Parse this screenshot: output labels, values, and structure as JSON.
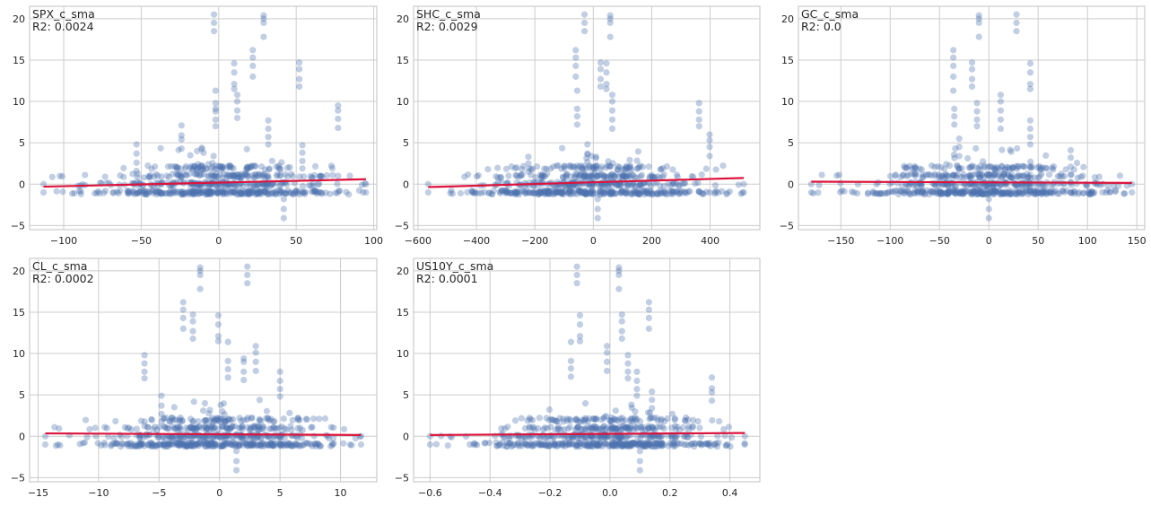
{
  "figure": {
    "style": "seaborn whitegrid",
    "point_color": "#4c72b0",
    "point_alpha": 0.35,
    "line_color": "#dc143c",
    "grid_color": "#cccccc",
    "text_color": "#262626"
  },
  "chart_data": [
    {
      "type": "scatter",
      "title": "",
      "annotation": [
        "SPX_c_sma",
        "R2: 0.0024"
      ],
      "xlabel": "",
      "ylabel": "",
      "xlim": [
        -122,
        102
      ],
      "ylim": [
        -5.5,
        21.5
      ],
      "xticks": [
        -100,
        -50,
        0,
        50,
        100
      ],
      "xtick_labels": [
        "−100",
        "−50",
        "0",
        "50",
        "100"
      ],
      "yticks": [
        -5,
        0,
        5,
        10,
        15,
        20
      ],
      "ytick_labels": [
        "−5",
        "0",
        "5",
        "10",
        "15",
        "20"
      ],
      "grid": true,
      "regression_line": {
        "x": [
          -113,
          95
        ],
        "y": [
          -0.3,
          0.6
        ]
      },
      "x_range": [
        -113,
        95
      ],
      "outliers": [
        {
          "x": -3,
          "y": [
            18.5,
            19.5,
            20.5
          ]
        },
        {
          "x": 29,
          "y": [
            17.8,
            19.5,
            20,
            20.4
          ]
        },
        {
          "x": 22,
          "y": [
            13,
            14.3,
            15.3,
            16.2
          ]
        },
        {
          "x": 10,
          "y": [
            11.5,
            12.1,
            13.5,
            14.6
          ]
        },
        {
          "x": 52,
          "y": [
            11.8,
            12.7,
            13.9,
            14.7
          ]
        },
        {
          "x": -2,
          "y": [
            7,
            7.8,
            8.8,
            9.1,
            9.8,
            11.3
          ]
        },
        {
          "x": 12,
          "y": [
            8,
            8.9,
            10,
            10.8
          ]
        },
        {
          "x": 77,
          "y": [
            6.8,
            7.9,
            8.9,
            9.5
          ]
        },
        {
          "x": 32,
          "y": [
            4.8,
            5.7,
            6.7,
            7.7
          ]
        },
        {
          "x": -24,
          "y": [
            4.3,
            5.4,
            5.9,
            7.1
          ]
        },
        {
          "x": -53,
          "y": [
            1.6,
            2.6,
            3.7,
            4.8
          ]
        },
        {
          "x": 54,
          "y": [
            1.9,
            2.8,
            3.8,
            4.7
          ]
        },
        {
          "x": 42,
          "y": [
            -1.8,
            -3,
            -4.1
          ]
        }
      ]
    },
    {
      "type": "scatter",
      "title": "",
      "annotation": [
        "SHC_c_sma",
        "R2: 0.0029"
      ],
      "xlabel": "",
      "ylabel": "",
      "xlim": [
        -615,
        570
      ],
      "ylim": [
        -5.5,
        21.5
      ],
      "xticks": [
        -600,
        -400,
        -200,
        0,
        200,
        400
      ],
      "xtick_labels": [
        "−600",
        "−400",
        "−200",
        "0",
        "200",
        "400"
      ],
      "yticks": [
        -5,
        0,
        5,
        10,
        15,
        20
      ],
      "ytick_labels": [
        "−5",
        "0",
        "5",
        "10",
        "15",
        "20"
      ],
      "grid": true,
      "regression_line": {
        "x": [
          -565,
          515
        ],
        "y": [
          -0.35,
          0.75
        ]
      },
      "x_range": [
        -565,
        515
      ],
      "outliers": [
        {
          "x": -30,
          "y": [
            18.5,
            19.5,
            20.5
          ]
        },
        {
          "x": 58,
          "y": [
            17.8,
            19.5,
            20,
            20.4
          ]
        },
        {
          "x": -60,
          "y": [
            13,
            14.3,
            15.3,
            16.2
          ]
        },
        {
          "x": 25,
          "y": [
            11.8,
            12.7,
            13.9,
            14.7
          ]
        },
        {
          "x": 45,
          "y": [
            11.5,
            12.1,
            13.5,
            14.6
          ]
        },
        {
          "x": -55,
          "y": [
            7.2,
            8.2,
            9.1,
            11.3
          ]
        },
        {
          "x": 65,
          "y": [
            6.7,
            7.8,
            8.9,
            10,
            10.8
          ]
        },
        {
          "x": 362,
          "y": [
            7,
            7.8,
            8.8,
            9.8
          ]
        },
        {
          "x": 398,
          "y": [
            3.4,
            4.5,
            5.3,
            6
          ]
        },
        {
          "x": -20,
          "y": [
            2.7,
            3.7,
            4.8
          ]
        },
        {
          "x": 15,
          "y": [
            -1.8,
            -3,
            -4.1
          ]
        },
        {
          "x": -222,
          "y": [
            1.5,
            2.5,
            3.3
          ]
        }
      ]
    },
    {
      "type": "scatter",
      "title": "",
      "annotation": [
        "GC_c_sma",
        "R2: 0.0"
      ],
      "xlabel": "",
      "ylabel": "",
      "xlim": [
        -193,
        158
      ],
      "ylim": [
        -5.5,
        21.5
      ],
      "xticks": [
        -150,
        -100,
        -50,
        0,
        50,
        100,
        150
      ],
      "xtick_labels": [
        "−150",
        "−100",
        "−50",
        "0",
        "50",
        "100",
        "150"
      ],
      "yticks": [
        -5,
        0,
        5,
        10,
        15,
        20
      ],
      "ytick_labels": [
        "−5",
        "0",
        "5",
        "10",
        "15",
        "20"
      ],
      "grid": true,
      "regression_line": {
        "x": [
          -180,
          145
        ],
        "y": [
          0.3,
          0.15
        ]
      },
      "x_range": [
        -180,
        145
      ],
      "outliers": [
        {
          "x": -10,
          "y": [
            17.8,
            19.5,
            20,
            20.4
          ]
        },
        {
          "x": 28,
          "y": [
            18.5,
            19.5,
            20.5
          ]
        },
        {
          "x": -36,
          "y": [
            11.3,
            13,
            14.3,
            15.3,
            16.2
          ]
        },
        {
          "x": -17,
          "y": [
            11.8,
            12.7,
            13.9,
            14.7
          ]
        },
        {
          "x": 42,
          "y": [
            11.5,
            12.1,
            13.5,
            14.6
          ]
        },
        {
          "x": -35,
          "y": [
            7.2,
            8.2,
            9.1
          ]
        },
        {
          "x": -12,
          "y": [
            7,
            7.8,
            8.8,
            9.8
          ]
        },
        {
          "x": 12,
          "y": [
            6.7,
            7.8,
            8.9,
            10,
            10.8
          ]
        },
        {
          "x": 42,
          "y": [
            4.8,
            5.7,
            6.7,
            7.7
          ]
        },
        {
          "x": -30,
          "y": [
            3.4,
            4.5,
            5.5
          ]
        },
        {
          "x": 83,
          "y": [
            1.1,
            2.1,
            3.2,
            4.1
          ]
        },
        {
          "x": 0,
          "y": [
            -1.8,
            -3,
            -4.1
          ]
        }
      ]
    },
    {
      "type": "scatter",
      "title": "",
      "annotation": [
        "CL_c_sma",
        "R2: 0.0002"
      ],
      "xlabel": "",
      "ylabel": "",
      "xlim": [
        -15.7,
        13
      ],
      "ylim": [
        -5.5,
        21.5
      ],
      "xticks": [
        -15,
        -10,
        -5,
        0,
        5,
        10
      ],
      "xtick_labels": [
        "−15",
        "−10",
        "−5",
        "0",
        "5",
        "10"
      ],
      "yticks": [
        -5,
        0,
        5,
        10,
        15,
        20
      ],
      "ytick_labels": [
        "−5",
        "0",
        "5",
        "10",
        "15",
        "20"
      ],
      "grid": true,
      "regression_line": {
        "x": [
          -14.4,
          11.7
        ],
        "y": [
          0.35,
          0.15
        ]
      },
      "x_range": [
        -14.4,
        11.7
      ],
      "outliers": [
        {
          "x": -1.6,
          "y": [
            17.8,
            19.5,
            20,
            20.4
          ]
        },
        {
          "x": 2.3,
          "y": [
            18.5,
            19.5,
            20.5
          ]
        },
        {
          "x": -3,
          "y": [
            13,
            14.3,
            15.3,
            16.2
          ]
        },
        {
          "x": -2.2,
          "y": [
            11.8,
            12.7,
            13.9,
            14.7
          ]
        },
        {
          "x": -0.1,
          "y": [
            11.5,
            12.1,
            13.5,
            14.6
          ]
        },
        {
          "x": -6.2,
          "y": [
            7,
            7.8,
            8.8,
            9.8
          ]
        },
        {
          "x": 3,
          "y": [
            7.9,
            9,
            10.1,
            10.9
          ]
        },
        {
          "x": 2,
          "y": [
            6.8,
            7.8,
            9,
            9.4
          ]
        },
        {
          "x": 0.7,
          "y": [
            7.1,
            8.1,
            9.1,
            11.4
          ]
        },
        {
          "x": 5,
          "y": [
            4.8,
            5.7,
            6.7,
            7.8
          ]
        },
        {
          "x": -4.8,
          "y": [
            2.7,
            3.7,
            4.9
          ]
        },
        {
          "x": 1.4,
          "y": [
            -1.8,
            -3,
            -4.1
          ]
        }
      ]
    },
    {
      "type": "scatter",
      "title": "",
      "annotation": [
        "US10Y_c_sma",
        "R2: 0.0001"
      ],
      "xlabel": "",
      "ylabel": "",
      "xlim": [
        -0.655,
        0.5
      ],
      "ylim": [
        -5.5,
        21.5
      ],
      "xticks": [
        -0.6,
        -0.4,
        -0.2,
        0.0,
        0.2,
        0.4
      ],
      "xtick_labels": [
        "−0.6",
        "−0.4",
        "−0.2",
        "0.0",
        "0.2",
        "0.4"
      ],
      "yticks": [
        -5,
        0,
        5,
        10,
        15,
        20
      ],
      "ytick_labels": [
        "−5",
        "0",
        "5",
        "10",
        "15",
        "20"
      ],
      "grid": true,
      "regression_line": {
        "x": [
          -0.6,
          0.45
        ],
        "y": [
          0.15,
          0.4
        ]
      },
      "x_range": [
        -0.6,
        0.45
      ],
      "outliers": [
        {
          "x": -0.11,
          "y": [
            18.5,
            19.5,
            20.5
          ]
        },
        {
          "x": 0.03,
          "y": [
            17.8,
            19.5,
            20,
            20.4
          ]
        },
        {
          "x": 0.13,
          "y": [
            13,
            14.3,
            15.3,
            16.2
          ]
        },
        {
          "x": -0.1,
          "y": [
            11.5,
            12.1,
            13.5,
            14.6
          ]
        },
        {
          "x": 0.04,
          "y": [
            11.8,
            12.7,
            13.9,
            14.7
          ]
        },
        {
          "x": -0.13,
          "y": [
            7.2,
            8.2,
            9.1,
            11.4
          ]
        },
        {
          "x": -0.01,
          "y": [
            7.9,
            9,
            10.1,
            10.9
          ]
        },
        {
          "x": 0.06,
          "y": [
            7,
            7.8,
            8.8,
            9.8
          ]
        },
        {
          "x": 0.34,
          "y": [
            4.3,
            5.3,
            5.8,
            7.1
          ]
        },
        {
          "x": 0.09,
          "y": [
            4.9,
            5.7,
            6.7,
            7.8
          ]
        },
        {
          "x": 0.14,
          "y": [
            3.4,
            4.4,
            5.4
          ]
        },
        {
          "x": 0.1,
          "y": [
            -1.8,
            -3,
            -4.1
          ]
        }
      ]
    }
  ]
}
